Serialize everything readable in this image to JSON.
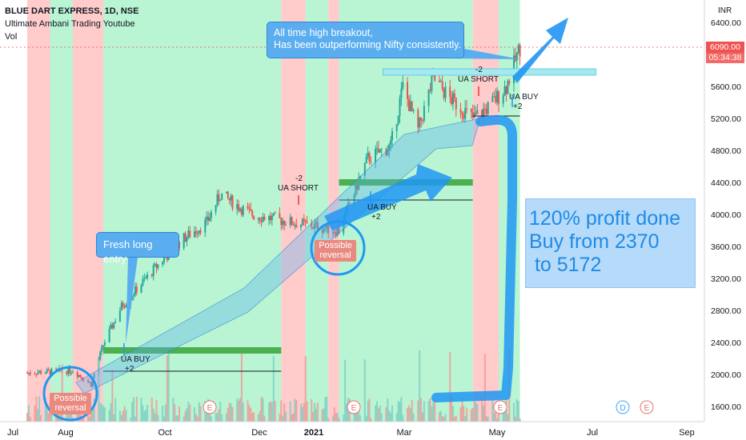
{
  "header": {
    "symbol_line": "BLUE DART EXPRESS, 1D, NSE",
    "indicator": "Ultimate Ambani Trading Youtube",
    "volume_label": "Vol"
  },
  "currency": "INR",
  "price_tag": {
    "price": "6090.00",
    "countdown": "05:34:38"
  },
  "annotations": {
    "breakout": "All time high breakout,\nHas been outperforming Nifty consistently.",
    "fresh_long": "Fresh long entry",
    "profit": "120% profit done\nBuy from 2370\n to 5172",
    "reversal_1": "Possible\nreversal",
    "reversal_2": "Possible\nreversal"
  },
  "signals": [
    {
      "label": "UA BUY",
      "count": "+2",
      "date": "Aug 19"
    },
    {
      "label": "UA SHORT",
      "count": "-2",
      "date": "Dec 17"
    },
    {
      "label": "UA BUY",
      "count": "+2",
      "date": "Jan 28"
    },
    {
      "label": "UA SHORT",
      "count": "-2",
      "date": "Apr 19"
    },
    {
      "label": "UA BUY",
      "count": "+2",
      "date": "May 07"
    }
  ],
  "earnings_markers": [
    "E",
    "E",
    "E",
    "E",
    "E",
    "E"
  ],
  "dividend_marker": "D",
  "colors": {
    "bull_bg": "#b9f5d3",
    "bear_bg": "#ffcbcb",
    "up": "#26a69a",
    "down": "#ef5350",
    "arrow": "#2196f3",
    "box": "#5aaef0"
  },
  "chart_data": {
    "type": "candlestick",
    "title": "BLUE DART EXPRESS, 1D, NSE",
    "x_ticks": [
      "Jul",
      "Aug",
      "Oct",
      "Dec",
      "2021",
      "Mar",
      "May",
      "Jul",
      "Sep"
    ],
    "y_ticks": [
      1600,
      2000,
      2400,
      2800,
      3200,
      3600,
      4000,
      4400,
      4800,
      5200,
      5600,
      6000,
      6400
    ],
    "y_tick_labels": [
      "1600.00",
      "2000.00",
      "2400.00",
      "2800.00",
      "3200.00",
      "3600.00",
      "4000.00",
      "4400.00",
      "4800.00",
      "5200.00",
      "5600.00",
      "6000.00",
      "6400.00"
    ],
    "ylim": [
      1500,
      6550
    ],
    "last_price": 6090,
    "price_path": [
      {
        "date": "2020-07-01",
        "price": 2020
      },
      {
        "date": "2020-07-31",
        "price": 2050
      },
      {
        "date": "2020-08-12",
        "price": 1880
      },
      {
        "date": "2020-08-20",
        "price": 2370
      },
      {
        "date": "2020-09-01",
        "price": 2850
      },
      {
        "date": "2020-09-24",
        "price": 3350
      },
      {
        "date": "2020-10-12",
        "price": 3700
      },
      {
        "date": "2020-10-27",
        "price": 3900
      },
      {
        "date": "2020-11-05",
        "price": 4250
      },
      {
        "date": "2020-11-25",
        "price": 4000
      },
      {
        "date": "2020-12-22",
        "price": 3900
      },
      {
        "date": "2021-01-22",
        "price": 3800
      },
      {
        "date": "2021-02-10",
        "price": 4700
      },
      {
        "date": "2021-02-25",
        "price": 4850
      },
      {
        "date": "2021-03-05",
        "price": 5600
      },
      {
        "date": "2021-03-15",
        "price": 5050
      },
      {
        "date": "2021-03-25",
        "price": 5700
      },
      {
        "date": "2021-04-05",
        "price": 5450
      },
      {
        "date": "2021-04-20",
        "price": 5200
      },
      {
        "date": "2021-05-01",
        "price": 5350
      },
      {
        "date": "2021-05-12",
        "price": 5600
      },
      {
        "date": "2021-05-21",
        "price": 6090
      }
    ],
    "levels": [
      {
        "price": 2300,
        "from": "2020-08-20",
        "to": "2020-12-15",
        "style": "green-bar"
      },
      {
        "price": 2040,
        "from": "2020-08-20",
        "to": "2020-12-15",
        "style": "line"
      },
      {
        "price": 4400,
        "from": "2021-01-22",
        "to": "2021-04-20",
        "style": "green-bar"
      },
      {
        "price": 4180,
        "from": "2021-01-22",
        "to": "2021-04-20",
        "style": "line"
      },
      {
        "price": 5780,
        "from": "2021-02-20",
        "to": "2021-07-10",
        "style": "cyan-zone"
      },
      {
        "price": 5230,
        "from": "2021-04-20",
        "to": "2021-05-21",
        "style": "line"
      }
    ],
    "grid": false
  }
}
